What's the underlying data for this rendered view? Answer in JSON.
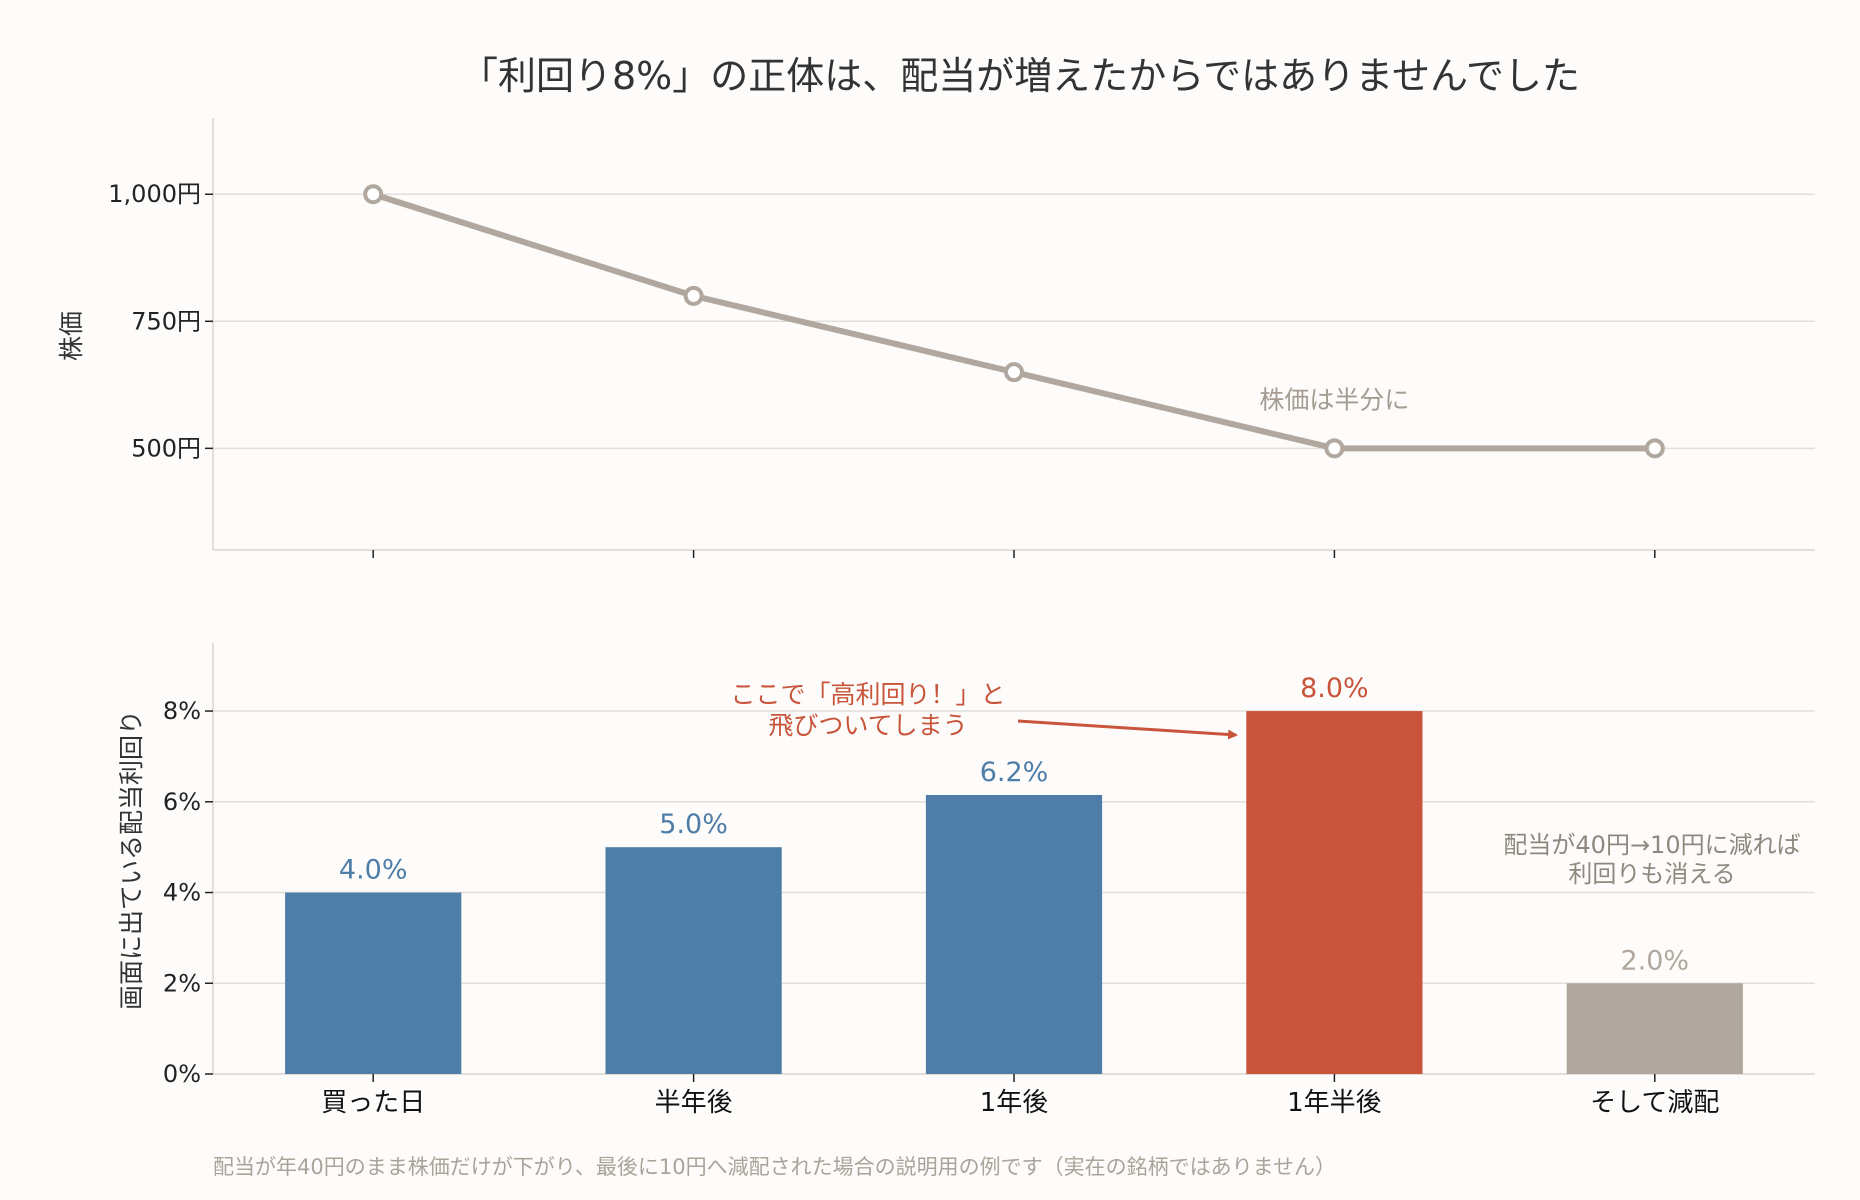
{
  "title": "「利回り8%」の正体は、配当が増えたからではありませんでした",
  "footnote": "配当が年40円のまま株価だけが下がり、最後に10円へ減配された場合の説明用の例です（実在の銘柄ではありません）",
  "colors": {
    "price_line": "#b0a89e",
    "bar_blue": "#4e7ea8",
    "bar_red": "#c8553b",
    "bar_gray": "#b0a89e",
    "annotation_red": "#c8553b",
    "annotation_gray": "#a49c92",
    "grid": "#e2dfda",
    "background": "#fdfcfa"
  },
  "chart_data": [
    {
      "type": "line",
      "ylabel": "株価",
      "x": [
        "買った日",
        "半年後",
        "1年後",
        "1年半後",
        "そして減配"
      ],
      "series": [
        {
          "values": [
            1000,
            800,
            650,
            500,
            500
          ]
        }
      ],
      "ylim": [
        300,
        1150
      ],
      "yticks": [
        500,
        750,
        1000
      ],
      "ytick_labels": [
        "500円",
        "750円",
        "1,000円"
      ],
      "grid": "horizontal",
      "annotations": [
        {
          "text": "株価は半分に",
          "x": "1年半後",
          "y": 500
        }
      ]
    },
    {
      "type": "bar",
      "ylabel": "画面に出ている配当利回り",
      "categories": [
        "買った日",
        "半年後",
        "1年後",
        "1年半後",
        "そして減配"
      ],
      "values": [
        4.0,
        5.0,
        6.15,
        8.0,
        2.0
      ],
      "value_labels": [
        "4.0%",
        "5.0%",
        "6.2%",
        "8.0%",
        "2.0%"
      ],
      "bar_colors": [
        "#4e7ea8",
        "#4e7ea8",
        "#4e7ea8",
        "#c8553b",
        "#b0a89e"
      ],
      "ylim": [
        0,
        9.5
      ],
      "yticks": [
        0,
        2,
        4,
        6,
        8
      ],
      "ytick_labels": [
        "0%",
        "2%",
        "4%",
        "6%",
        "8%"
      ],
      "grid": "horizontal",
      "annotations": [
        {
          "lines": [
            "ここで「高利回り！」と",
            "飛びついてしまう"
          ],
          "points_to": "1年半後",
          "color": "#c8553b"
        },
        {
          "lines": [
            "配当が40円→10円に減れば",
            "利回りも消える"
          ],
          "near": "そして減配",
          "color": "#8f887e"
        }
      ]
    }
  ]
}
